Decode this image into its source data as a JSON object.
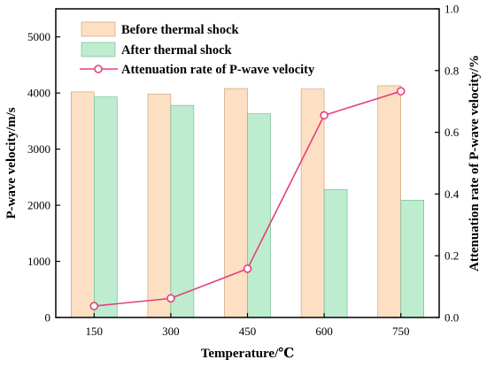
{
  "chart_data": {
    "type": "bar",
    "categories": [
      "150",
      "300",
      "450",
      "600",
      "750"
    ],
    "xlabel": "Temperature/℃",
    "ylabel": "P-wave velocity/m/s",
    "y2label": "Attenuation rate of P-wave velocity/%",
    "ylim": [
      0,
      5500
    ],
    "y2lim": [
      0,
      1.0
    ],
    "yticks": [
      "0",
      "1000",
      "2000",
      "3000",
      "4000",
      "5000"
    ],
    "y2ticks": [
      "0.0",
      "0.2",
      "0.4",
      "0.6",
      "0.8",
      "1.0"
    ],
    "series": [
      {
        "name": "Before thermal shock",
        "type": "bar",
        "axis": "left",
        "values": [
          4020,
          3980,
          4080,
          4070,
          4130
        ]
      },
      {
        "name": "After thermal shock",
        "type": "bar",
        "axis": "left",
        "values": [
          3930,
          3780,
          3630,
          2280,
          2090
        ]
      },
      {
        "name": "Attenuation rate of P-wave velocity",
        "type": "line",
        "axis": "right",
        "values": [
          0.037,
          0.062,
          0.158,
          0.655,
          0.733
        ]
      }
    ],
    "colors": {
      "before": "#fde0c4",
      "before_stroke": "#c9956b",
      "after": "#bdeccf",
      "after_stroke": "#62b889",
      "line": "#e3407d"
    },
    "legend_position": "top-left",
    "grid": false
  }
}
